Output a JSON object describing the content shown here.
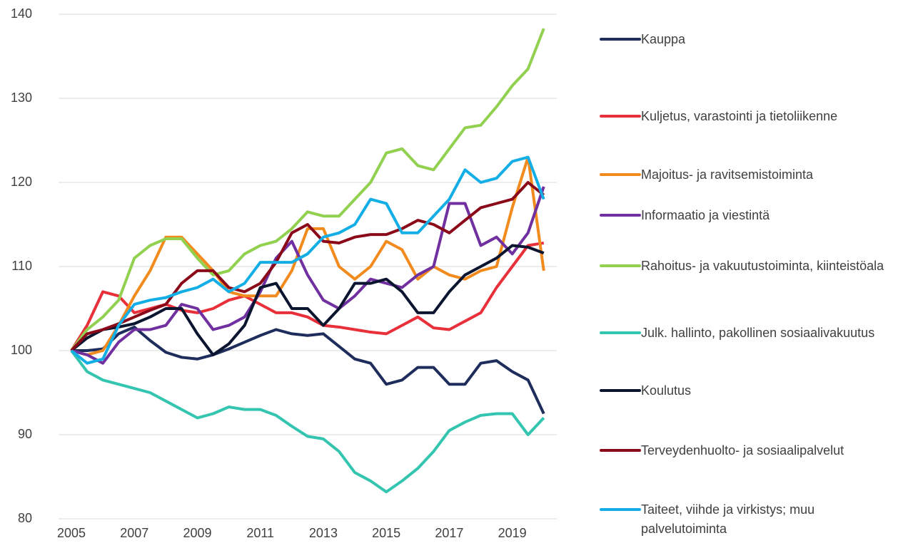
{
  "chart_data": {
    "type": "line",
    "x": [
      2005,
      2005.5,
      2006,
      2006.5,
      2007,
      2007.5,
      2008,
      2008.5,
      2009,
      2009.5,
      2010,
      2010.5,
      2011,
      2011.5,
      2012,
      2012.5,
      2013,
      2013.5,
      2014,
      2014.5,
      2015,
      2015.5,
      2016,
      2016.5,
      2017,
      2017.5,
      2018,
      2018.5,
      2019,
      2019.5,
      2020
    ],
    "xlim": [
      2005,
      2020.3
    ],
    "xticks": [
      2005,
      2007,
      2009,
      2011,
      2013,
      2015,
      2017,
      2019
    ],
    "ylim": [
      80,
      140
    ],
    "yticks": [
      80,
      90,
      100,
      110,
      120,
      130,
      140
    ],
    "grid": true,
    "series": [
      {
        "name": "Kauppa",
        "color": "#1f2d5c",
        "values": [
          100,
          100,
          100.2,
          102,
          102.8,
          101.2,
          99.8,
          99.2,
          99,
          99.5,
          100.2,
          101,
          101.8,
          102.5,
          102,
          101.8,
          102,
          100.5,
          99,
          98.5,
          96,
          96.5,
          98,
          98,
          96,
          96,
          98.5,
          98.8,
          97.5,
          96.5,
          92.5
        ]
      },
      {
        "name": "Kuljetus, varastointi ja tietoliikenne",
        "color": "#e8303a",
        "values": [
          100,
          103,
          107,
          106.5,
          104.5,
          105,
          105.5,
          104.8,
          104.5,
          105,
          106,
          106.5,
          105.5,
          104.5,
          104.5,
          104,
          103,
          102.8,
          102.5,
          102.2,
          102,
          103,
          104,
          102.7,
          102.5,
          103.5,
          104.5,
          107.5,
          110,
          112.5,
          112.8
        ]
      },
      {
        "name": "Majoitus- ja ravitsemistoiminta",
        "color": "#f28b1e",
        "values": [
          100,
          99.5,
          100,
          103,
          106.5,
          109.5,
          113.5,
          113.5,
          111.5,
          109.5,
          107,
          106.5,
          106.5,
          106.5,
          109.5,
          114.5,
          114.5,
          110,
          108.5,
          110,
          113,
          112,
          108.5,
          110,
          109,
          108.5,
          109.5,
          110,
          117,
          123,
          109.5
        ]
      },
      {
        "name": "Informaatio ja viestintä",
        "color": "#7030a0",
        "values": [
          100,
          99.5,
          98.5,
          101,
          102.5,
          102.5,
          103,
          105.5,
          105,
          102.5,
          103,
          104,
          107,
          111,
          113,
          109,
          106,
          105,
          106.5,
          108.5,
          108,
          107.5,
          109,
          110,
          117.5,
          117.5,
          112.5,
          113.5,
          111.5,
          114,
          119.5
        ]
      },
      {
        "name": "Rahoitus- ja vakuutustoiminta, kiinteistöala",
        "color": "#92d050",
        "values": [
          100,
          102.5,
          104,
          106,
          111,
          112.5,
          113.3,
          113.3,
          111,
          109,
          109.5,
          111.5,
          112.5,
          113,
          114.5,
          116.5,
          116,
          116,
          118,
          120,
          123.5,
          124,
          122,
          121.5,
          124,
          126.5,
          126.8,
          129,
          131.5,
          133.5,
          138.3
        ]
      },
      {
        "name": "Julk. hallinto, pakollinen sosiaalivakuutus",
        "color": "#33c5b0",
        "values": [
          100,
          97.5,
          96.5,
          96,
          95.5,
          95,
          94,
          93,
          92,
          92.5,
          93.3,
          93,
          93,
          92.3,
          91,
          89.8,
          89.5,
          88,
          85.5,
          84.5,
          83.2,
          84.5,
          86,
          88,
          90.5,
          91.5,
          92.3,
          92.5,
          92.5,
          90,
          92
        ]
      },
      {
        "name": "Koulutus",
        "color": "#0b1530",
        "values": [
          100,
          101.5,
          102.5,
          102.8,
          103.2,
          104,
          105,
          105,
          102,
          99.5,
          100.8,
          103,
          107.5,
          108,
          105,
          105,
          103,
          105,
          108,
          108,
          108.5,
          107,
          104.5,
          104.5,
          107,
          109,
          110,
          111,
          112.5,
          112.3,
          111.6
        ]
      },
      {
        "name": "Terveydenhuolto- ja sosiaalipalvelut",
        "color": "#8b0a1a",
        "values": [
          100,
          102,
          102.5,
          103.2,
          104,
          104.8,
          105.5,
          108,
          109.5,
          109.5,
          107.5,
          107,
          108,
          110.5,
          114,
          115,
          113,
          112.8,
          113.5,
          113.8,
          113.8,
          114.5,
          115.5,
          115,
          114,
          115.5,
          117,
          117.5,
          118,
          120,
          118.5
        ]
      },
      {
        "name": "Taiteet, viihde ja virkistys; muu palvelutoiminta",
        "color": "#14aee6",
        "values": [
          100,
          98.5,
          99,
          103,
          105.5,
          106,
          106.3,
          107,
          107.5,
          108.5,
          107,
          108,
          110.5,
          110.5,
          110.5,
          111.5,
          113.5,
          114,
          115,
          118,
          117.5,
          114,
          114,
          116,
          118,
          121.5,
          120,
          120.5,
          122.5,
          123,
          118
        ]
      }
    ]
  }
}
